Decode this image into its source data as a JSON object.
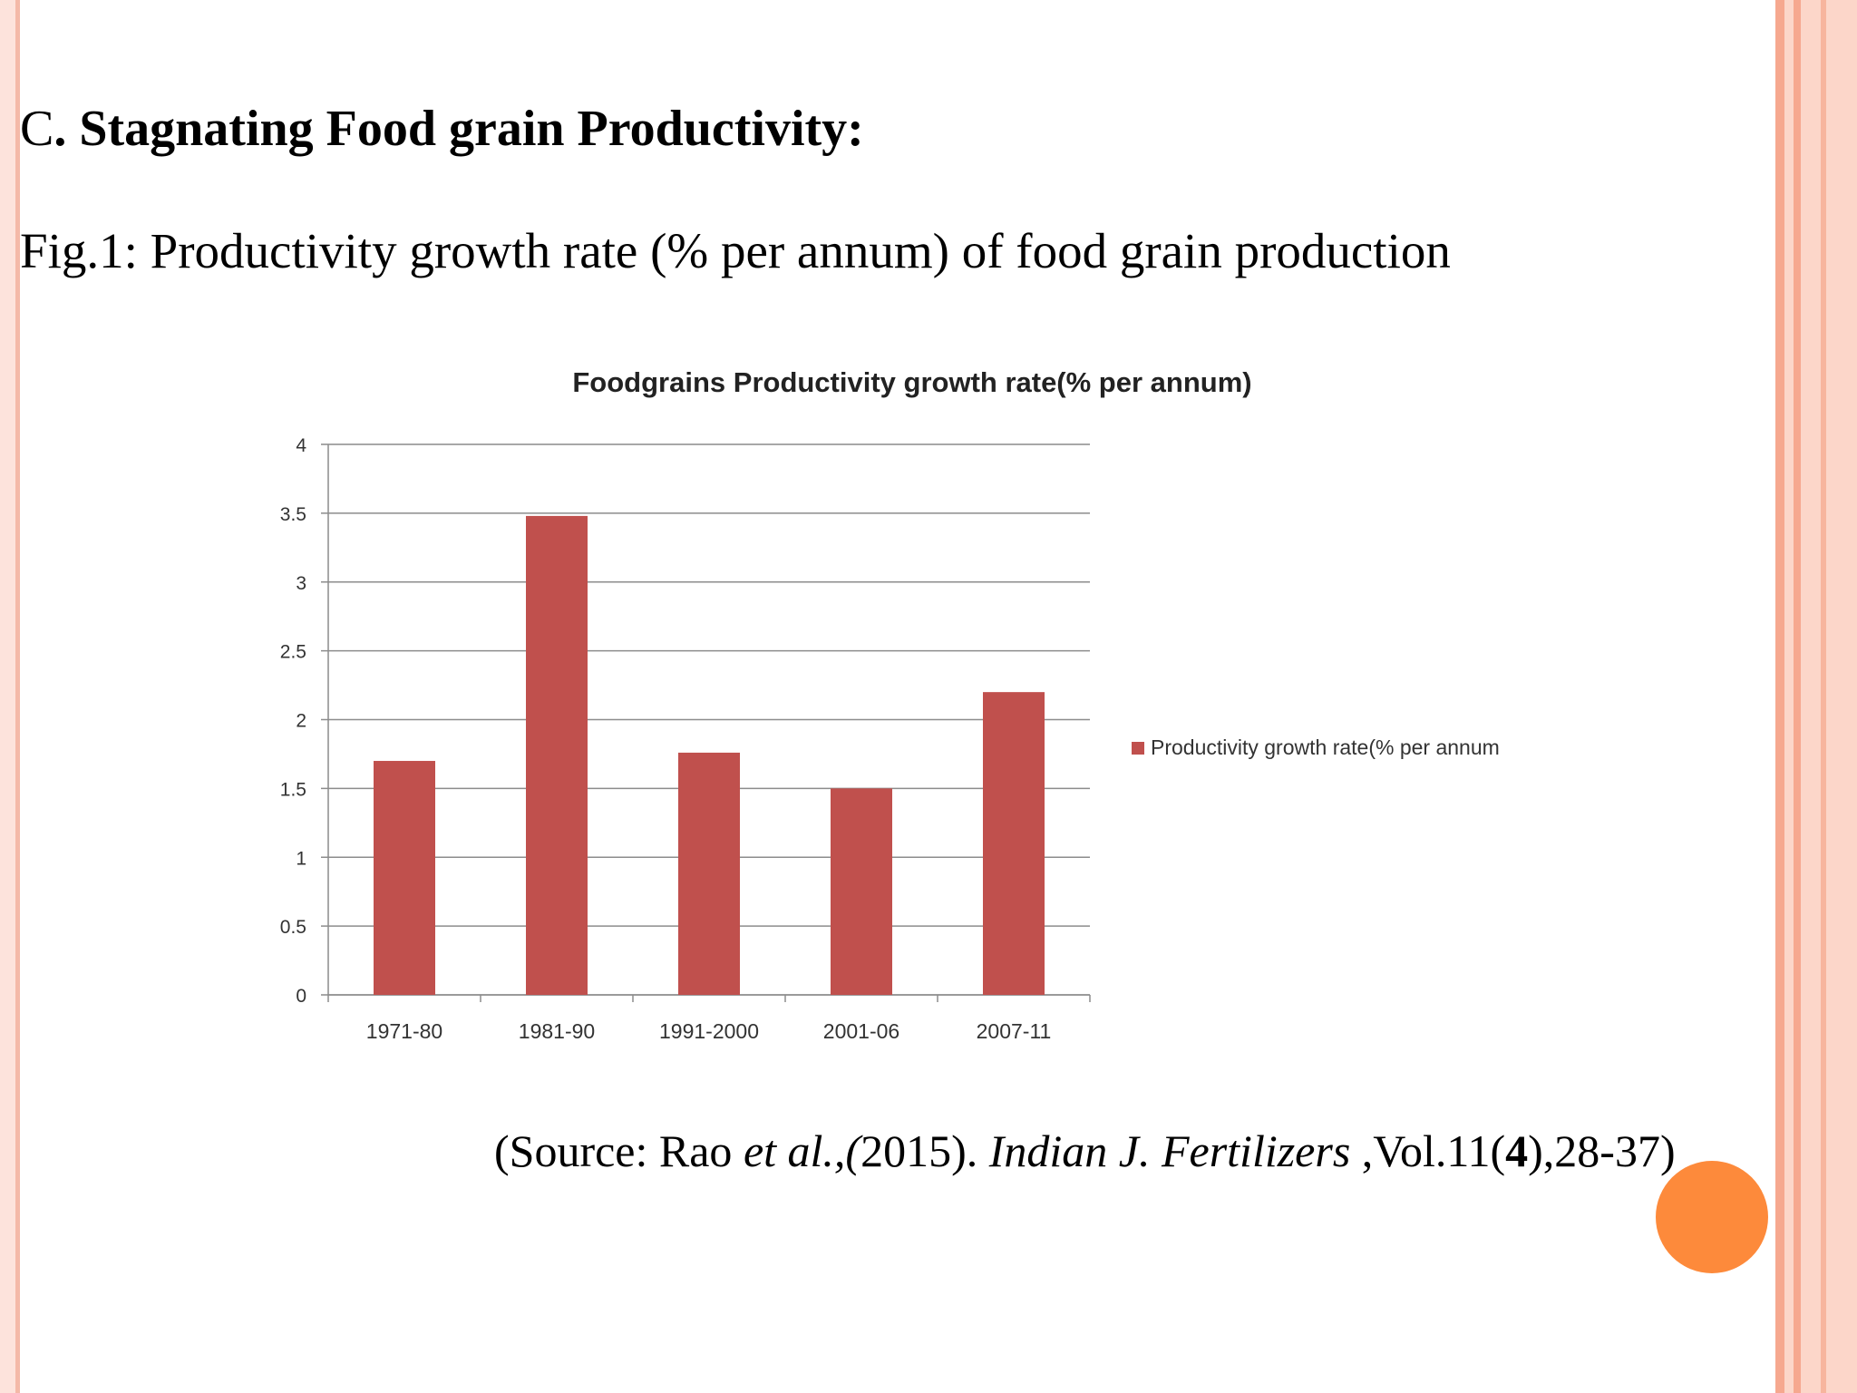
{
  "heading": {
    "letter": "C",
    "rest": ". Stagnating Food grain Productivity:"
  },
  "figure_caption": "Fig.1:  Productivity growth rate (% per annum) of food grain production",
  "source": {
    "prefix": "(Source: Rao ",
    "authors_italic": "et al.,(",
    "year": "2015). ",
    "journal_italic": "Indian J. Fertilizers",
    "vol_prefix": " ,Vol.11(",
    "issue_bold": "4",
    "pages": "),28-37)"
  },
  "colors": {
    "bar": "#c0504d",
    "grid": "#8c8c8c",
    "accent_dot": "#fd8a3b"
  },
  "chart_data": {
    "type": "bar",
    "title": "Foodgrains Productivity growth rate(% per annum)",
    "categories": [
      "1971-80",
      "1981-90",
      "1991-2000",
      "2001-06",
      "2007-11"
    ],
    "series": [
      {
        "name": "Productivity growth rate(% per annum",
        "values": [
          1.7,
          3.48,
          1.76,
          1.5,
          2.2
        ]
      }
    ],
    "ylim": [
      0,
      4
    ],
    "yticks": [
      "0",
      "0.5",
      "1",
      "1.5",
      "2",
      "2.5",
      "3",
      "3.5",
      "4"
    ],
    "grid": true,
    "legend": "right"
  }
}
